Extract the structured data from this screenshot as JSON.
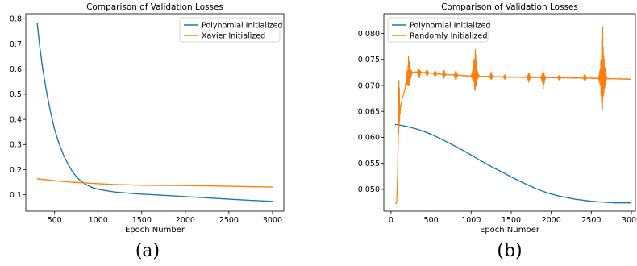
{
  "colors": {
    "blue": "#1f77b4",
    "orange": "#ff7f0e"
  },
  "chart_data": [
    {
      "type": "line",
      "caption": "(a)",
      "title": "Comparison of Validation Losses",
      "xlabel": "Epoch Number",
      "ylabel": "",
      "xlim": [
        170,
        3130
      ],
      "ylim": [
        0.035,
        0.82
      ],
      "xticks": [
        500,
        1000,
        1500,
        2000,
        2500,
        3000
      ],
      "yticks": [
        0.1,
        0.2,
        0.3,
        0.4,
        0.5,
        0.6,
        0.7,
        0.8
      ],
      "legend_position": "top-right",
      "grid": false,
      "series": [
        {
          "name": "Polynomial Initialized",
          "color": "#1f77b4",
          "x": [
            300,
            330,
            360,
            400,
            450,
            500,
            550,
            600,
            650,
            700,
            750,
            800,
            850,
            900,
            950,
            1000,
            1100,
            1200,
            1300,
            1400,
            1500,
            1750,
            2000,
            2250,
            2500,
            2750,
            3000
          ],
          "y": [
            0.785,
            0.69,
            0.61,
            0.525,
            0.435,
            0.36,
            0.305,
            0.26,
            0.225,
            0.195,
            0.172,
            0.155,
            0.143,
            0.134,
            0.127,
            0.122,
            0.116,
            0.111,
            0.108,
            0.105,
            0.103,
            0.098,
            0.093,
            0.088,
            0.083,
            0.078,
            0.074
          ]
        },
        {
          "name": "Xavier Initialized",
          "color": "#ff7f0e",
          "x": [
            300,
            330,
            400,
            500,
            600,
            700,
            800,
            900,
            1000,
            1200,
            1500,
            2000,
            2500,
            3000
          ],
          "y": [
            0.165,
            0.162,
            0.16,
            0.156,
            0.153,
            0.15,
            0.148,
            0.146,
            0.144,
            0.141,
            0.138,
            0.137,
            0.134,
            0.131
          ]
        }
      ]
    },
    {
      "type": "line",
      "caption": "(b)",
      "title": "Comparison of Validation Losses",
      "xlabel": "Epoch Number",
      "ylabel": "",
      "xlim": [
        -90,
        3050
      ],
      "ylim": [
        0.0458,
        0.0838
      ],
      "xticks": [
        0,
        500,
        1000,
        1500,
        2000,
        2500,
        3000
      ],
      "yticks": [
        0.05,
        0.055,
        0.06,
        0.065,
        0.07,
        0.075,
        0.08
      ],
      "ytick_labels": [
        "0.050",
        "0.055",
        "0.060",
        "0.065",
        "0.070",
        "0.075",
        "0.080"
      ],
      "legend_position": "top-left",
      "grid": false,
      "series": [
        {
          "name": "Polynomial Initialized",
          "color": "#1f77b4",
          "x": [
            50,
            100,
            200,
            300,
            400,
            500,
            600,
            700,
            800,
            900,
            1000,
            1100,
            1200,
            1300,
            1400,
            1500,
            1600,
            1700,
            1800,
            1900,
            2000,
            2100,
            2200,
            2300,
            2400,
            2500,
            2600,
            2700,
            2800,
            2900,
            3000
          ],
          "y": [
            0.0625,
            0.0624,
            0.0621,
            0.0617,
            0.0612,
            0.0606,
            0.0599,
            0.0591,
            0.0583,
            0.0575,
            0.0566,
            0.0557,
            0.0548,
            0.054,
            0.0532,
            0.0524,
            0.0516,
            0.0509,
            0.0502,
            0.0496,
            0.0491,
            0.0487,
            0.0484,
            0.0481,
            0.0479,
            0.0477,
            0.0476,
            0.0475,
            0.0474,
            0.0474,
            0.0474
          ]
        },
        {
          "name": "Randomly Initialized",
          "color": "#ff7f0e",
          "baseline": {
            "x": [
              50,
              70,
              80,
              90,
              100,
              110,
              120,
              140,
              160,
              180,
              200,
              230,
              260,
              300,
              400,
              600,
              800,
              1000,
              1500,
              2000,
              2500,
              3000
            ],
            "y": [
              0.0473,
              0.0474,
              0.052,
              0.058,
              0.0615,
              0.0642,
              0.066,
              0.0675,
              0.0685,
              0.0695,
              0.0705,
              0.0718,
              0.0724,
              0.0726,
              0.0725,
              0.0722,
              0.072,
              0.0718,
              0.0716,
              0.0715,
              0.0714,
              0.0712
            ]
          },
          "oscillation_bursts": [
            {
              "center": 100,
              "width": 20,
              "upper": 0.0737,
              "lower": 0.0625
            },
            {
              "center": 220,
              "width": 60,
              "upper": 0.076,
              "lower": 0.0695
            },
            {
              "center": 350,
              "width": 40,
              "upper": 0.0732,
              "lower": 0.0712
            },
            {
              "center": 450,
              "width": 30,
              "upper": 0.0734,
              "lower": 0.0715
            },
            {
              "center": 550,
              "width": 30,
              "upper": 0.073,
              "lower": 0.0713
            },
            {
              "center": 660,
              "width": 30,
              "upper": 0.0731,
              "lower": 0.0712
            },
            {
              "center": 810,
              "width": 30,
              "upper": 0.0733,
              "lower": 0.0705
            },
            {
              "center": 1050,
              "width": 60,
              "upper": 0.0778,
              "lower": 0.0685
            },
            {
              "center": 1250,
              "width": 30,
              "upper": 0.0727,
              "lower": 0.0707
            },
            {
              "center": 1420,
              "width": 30,
              "upper": 0.0722,
              "lower": 0.071
            },
            {
              "center": 1720,
              "width": 30,
              "upper": 0.0728,
              "lower": 0.0703
            },
            {
              "center": 1900,
              "width": 40,
              "upper": 0.0732,
              "lower": 0.069
            },
            {
              "center": 2100,
              "width": 30,
              "upper": 0.0723,
              "lower": 0.0708
            },
            {
              "center": 2420,
              "width": 30,
              "upper": 0.0725,
              "lower": 0.0705
            },
            {
              "center": 2640,
              "width": 60,
              "upper": 0.0826,
              "lower": 0.064
            }
          ]
        }
      ]
    }
  ]
}
